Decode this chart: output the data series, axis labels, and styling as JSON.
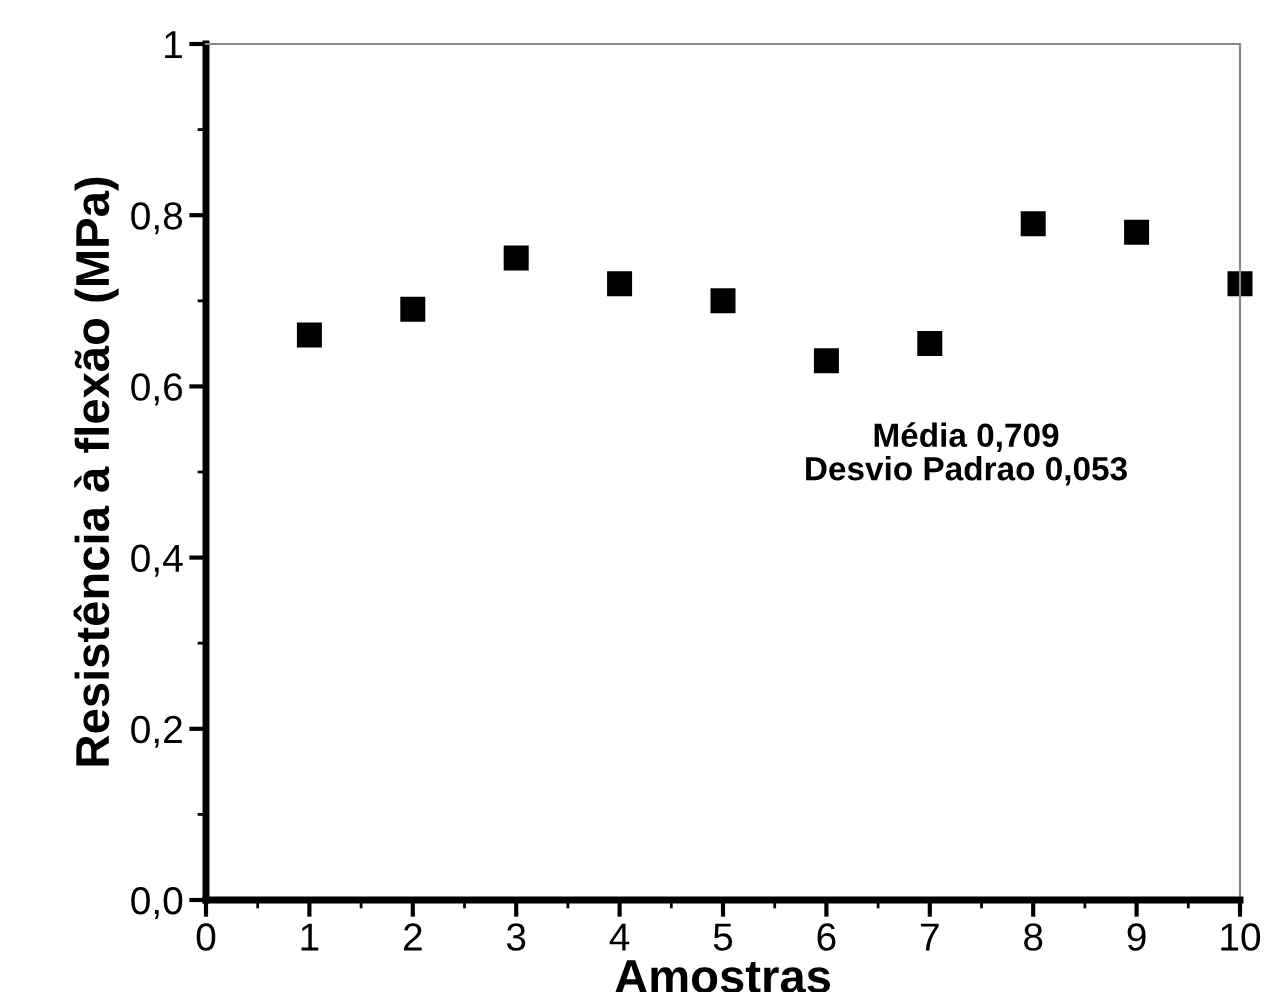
{
  "chart_data": {
    "type": "scatter",
    "xlabel": "Amostras",
    "ylabel": "Resistência à flexão (MPa)",
    "x": [
      1,
      2,
      3,
      4,
      5,
      6,
      7,
      8,
      9,
      10
    ],
    "values": [
      0.66,
      0.69,
      0.75,
      0.72,
      0.7,
      0.63,
      0.65,
      0.79,
      0.78,
      0.72
    ],
    "color": "#000000",
    "marker": "square",
    "xlim": [
      0,
      10
    ],
    "xticks": [
      0,
      1,
      2,
      3,
      4,
      5,
      6,
      7,
      8,
      9,
      10
    ],
    "ylim": [
      0,
      1
    ],
    "yticks": [
      {
        "value": 0,
        "label": "0,0"
      },
      {
        "value": 0.2,
        "label": "0,2"
      },
      {
        "value": 0.4,
        "label": "0,4"
      },
      {
        "value": 0.6,
        "label": "0,6"
      },
      {
        "value": 0.8,
        "label": "0,8"
      },
      1
    ],
    "annotations": [
      "Média 0,709\nDesvio Padrao 0,053"
    ],
    "grid": false,
    "legend": false
  }
}
